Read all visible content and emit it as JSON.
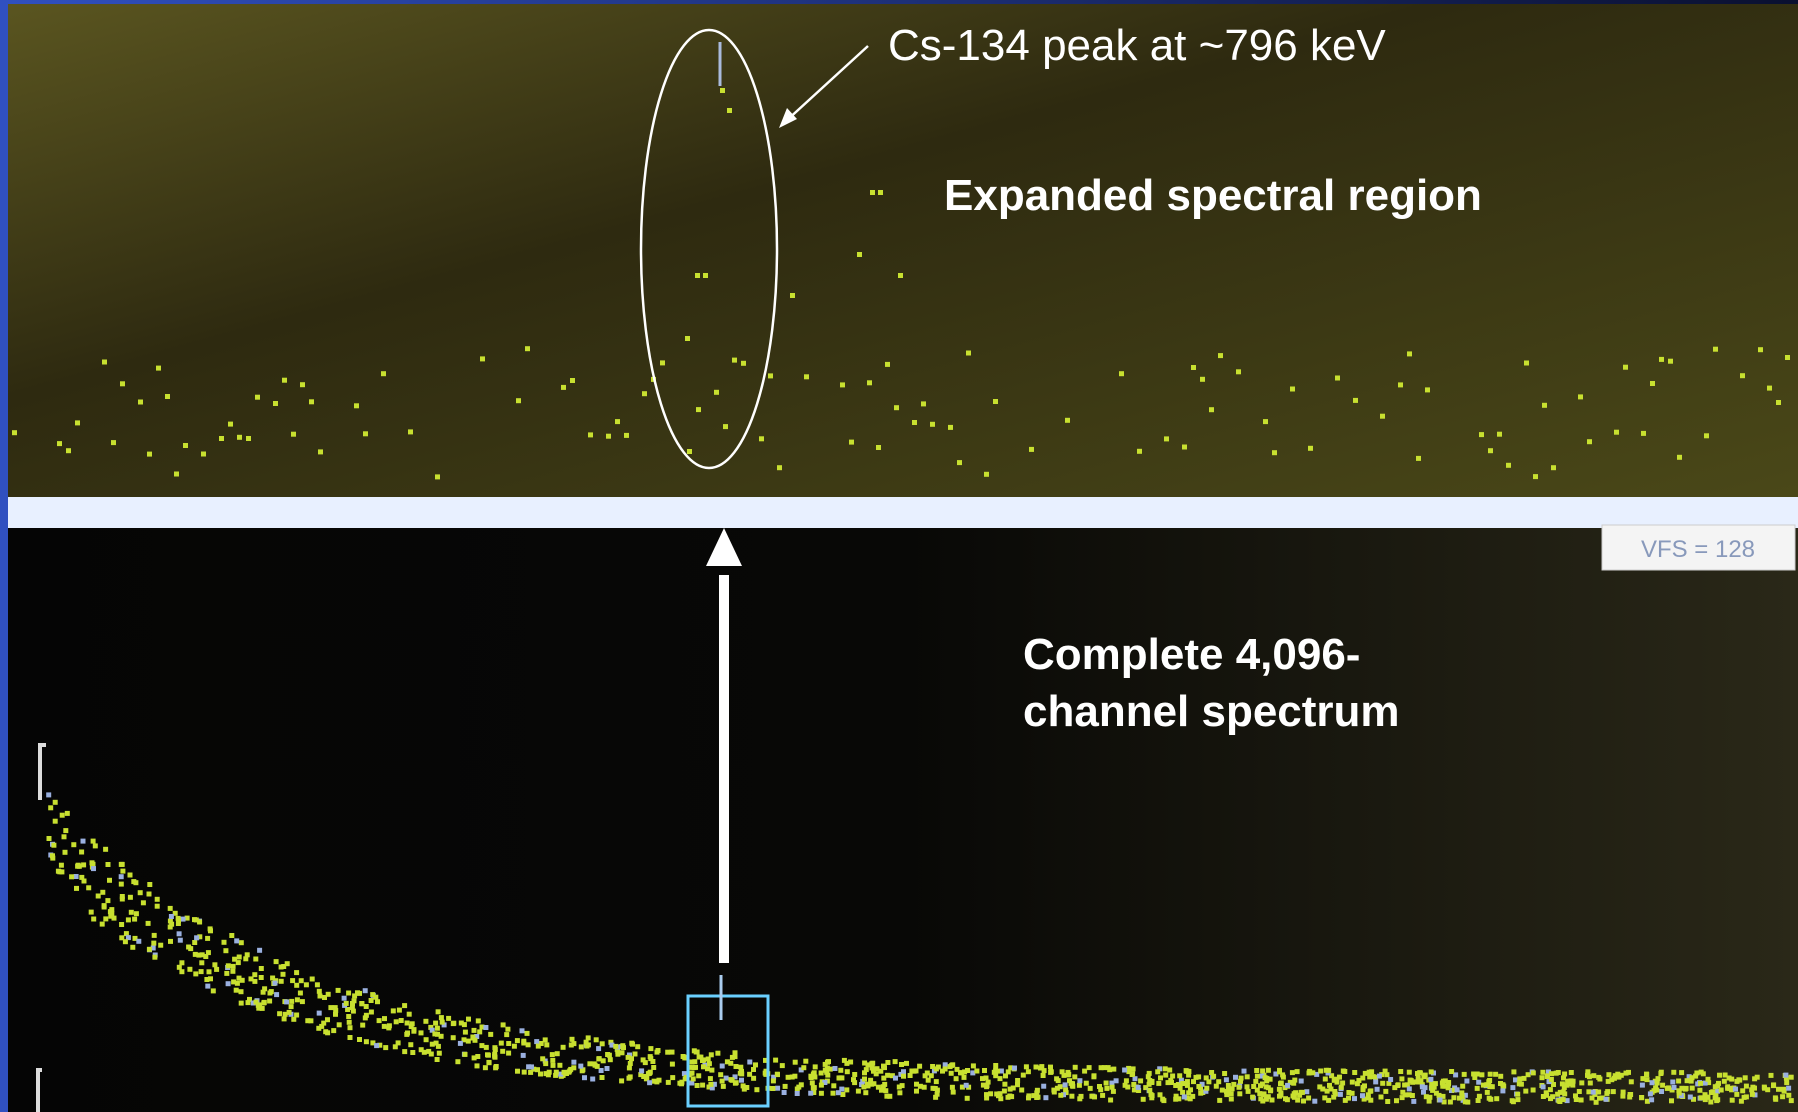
{
  "annotations": {
    "peak_label": "Cs-134 peak at ~796 keV",
    "expanded_label": "Expanded spectral region",
    "complete_label": [
      "Complete 4,096-",
      "channel spectrum"
    ]
  },
  "display": {
    "vfs_label": "VFS = 128"
  }
}
